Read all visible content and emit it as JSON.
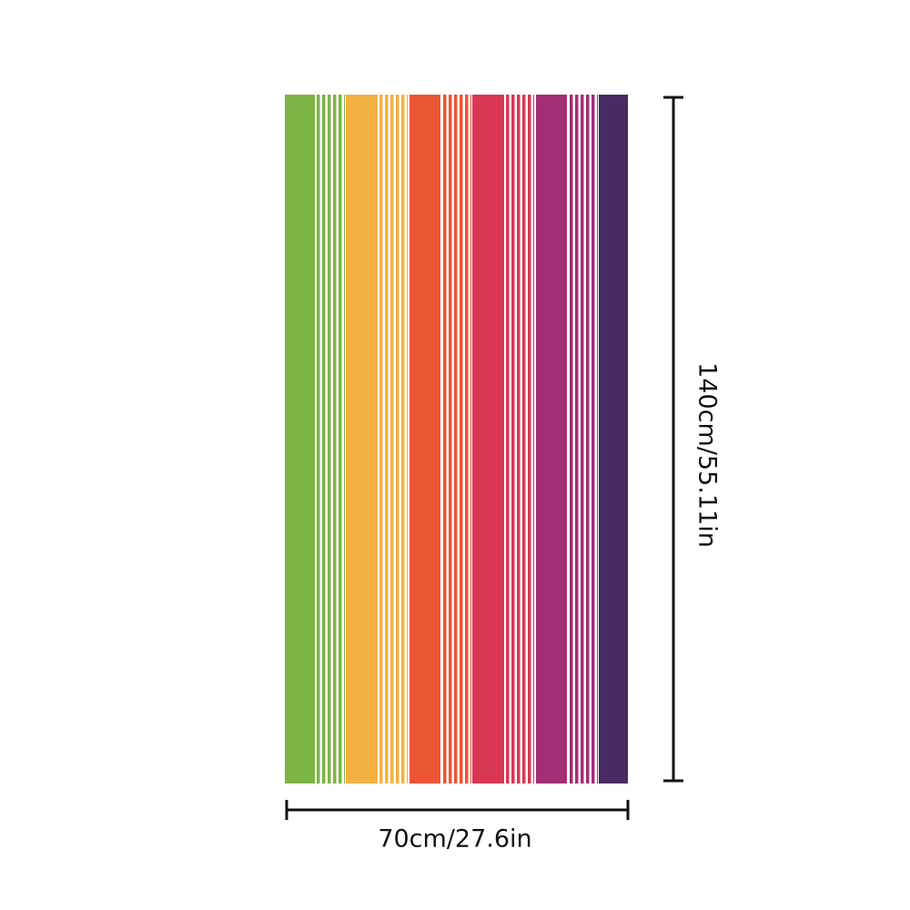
{
  "width_label": "70cm/27.6in",
  "height_label": "140cm/55.11in"
}
